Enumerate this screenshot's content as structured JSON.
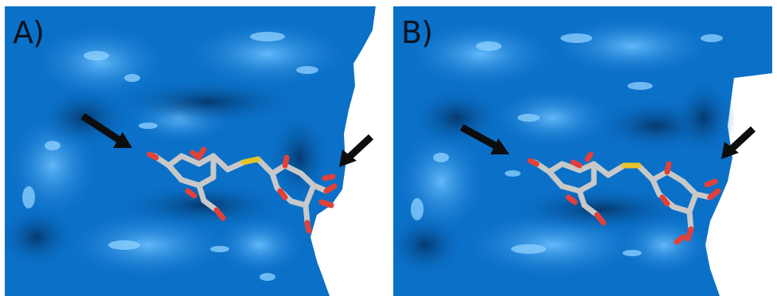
{
  "figure": {
    "panels": [
      {
        "id": "A",
        "label": "A)"
      },
      {
        "id": "B",
        "label": "B)"
      }
    ]
  },
  "colors": {
    "surface": "#0a70c8",
    "surface_highlight": "#4aa6ee",
    "surface_shadow": "#053f80",
    "background": "#ffffff",
    "carbon": "#c8c8c8",
    "oxygen": "#e0413a",
    "sulfur": "#e6c22a",
    "arrow": "#0d0d0d"
  }
}
